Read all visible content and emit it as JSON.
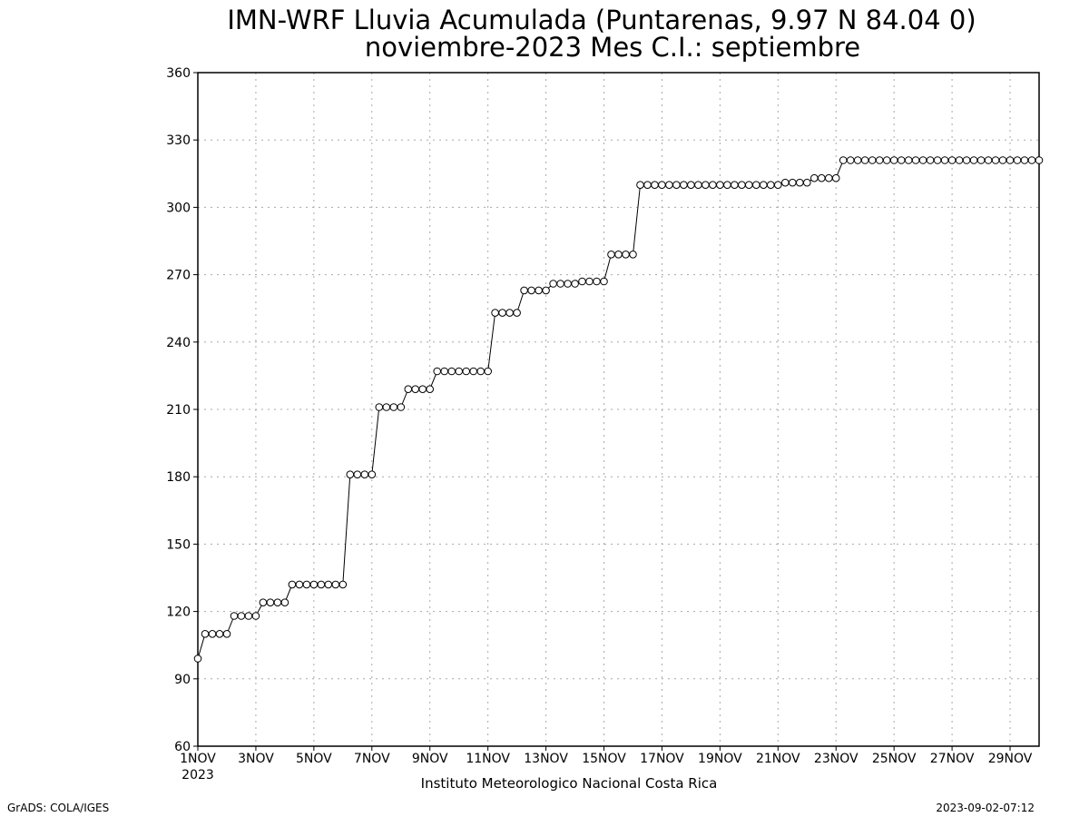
{
  "chart_data": {
    "type": "line",
    "title": "IMN-WRF  Lluvia Acumulada (Puntarenas, 9.97  N 84.04  0)",
    "subtitle": "noviembre-2023 Mes C.I.: septiembre",
    "xlabel": "",
    "ylabel": "",
    "ylim": [
      60,
      360
    ],
    "yticks": [
      60,
      90,
      120,
      150,
      180,
      210,
      240,
      270,
      300,
      330,
      360
    ],
    "xlim_days": [
      1,
      30
    ],
    "xticks": [
      {
        "day": 1,
        "label": "1NOV",
        "sublabel": "2023"
      },
      {
        "day": 3,
        "label": "3NOV"
      },
      {
        "day": 5,
        "label": "5NOV"
      },
      {
        "day": 7,
        "label": "7NOV"
      },
      {
        "day": 9,
        "label": "9NOV"
      },
      {
        "day": 11,
        "label": "11NOV"
      },
      {
        "day": 13,
        "label": "13NOV"
      },
      {
        "day": 15,
        "label": "15NOV"
      },
      {
        "day": 17,
        "label": "17NOV"
      },
      {
        "day": 19,
        "label": "19NOV"
      },
      {
        "day": 21,
        "label": "21NOV"
      },
      {
        "day": 23,
        "label": "23NOV"
      },
      {
        "day": 25,
        "label": "25NOV"
      },
      {
        "day": 27,
        "label": "27NOV"
      },
      {
        "day": 29,
        "label": "29NOV"
      }
    ],
    "grid": true,
    "marker": "open-circle",
    "line_color": "#000000",
    "series": [
      {
        "values": [
          99,
          110,
          110,
          110,
          110,
          118,
          118,
          118,
          118,
          124,
          124,
          124,
          124,
          132,
          132,
          132,
          132,
          132,
          132,
          132,
          132,
          181,
          181,
          181,
          181,
          211,
          211,
          211,
          211,
          219,
          219,
          219,
          219,
          227,
          227,
          227,
          227,
          227,
          227,
          227,
          227,
          253,
          253,
          253,
          253,
          263,
          263,
          263,
          263,
          266,
          266,
          266,
          266,
          267,
          267,
          267,
          267,
          279,
          279,
          279,
          279,
          310,
          310,
          310,
          310,
          310,
          310,
          310,
          310,
          310,
          310,
          310,
          310,
          310,
          310,
          310,
          310,
          310,
          310,
          310,
          310,
          311,
          311,
          311,
          311,
          313,
          313,
          313,
          313,
          321,
          321,
          321,
          321,
          321,
          321,
          321,
          321,
          321,
          321,
          321,
          321,
          321,
          321,
          321,
          321,
          321,
          321,
          321,
          321,
          321,
          321,
          321,
          321,
          321,
          321,
          321,
          321
        ]
      }
    ]
  },
  "footer": {
    "center": "Instituto Meteorologico Nacional Costa Rica",
    "left": "GrADS: COLA/IGES",
    "right": "2023-09-02-07:12"
  }
}
